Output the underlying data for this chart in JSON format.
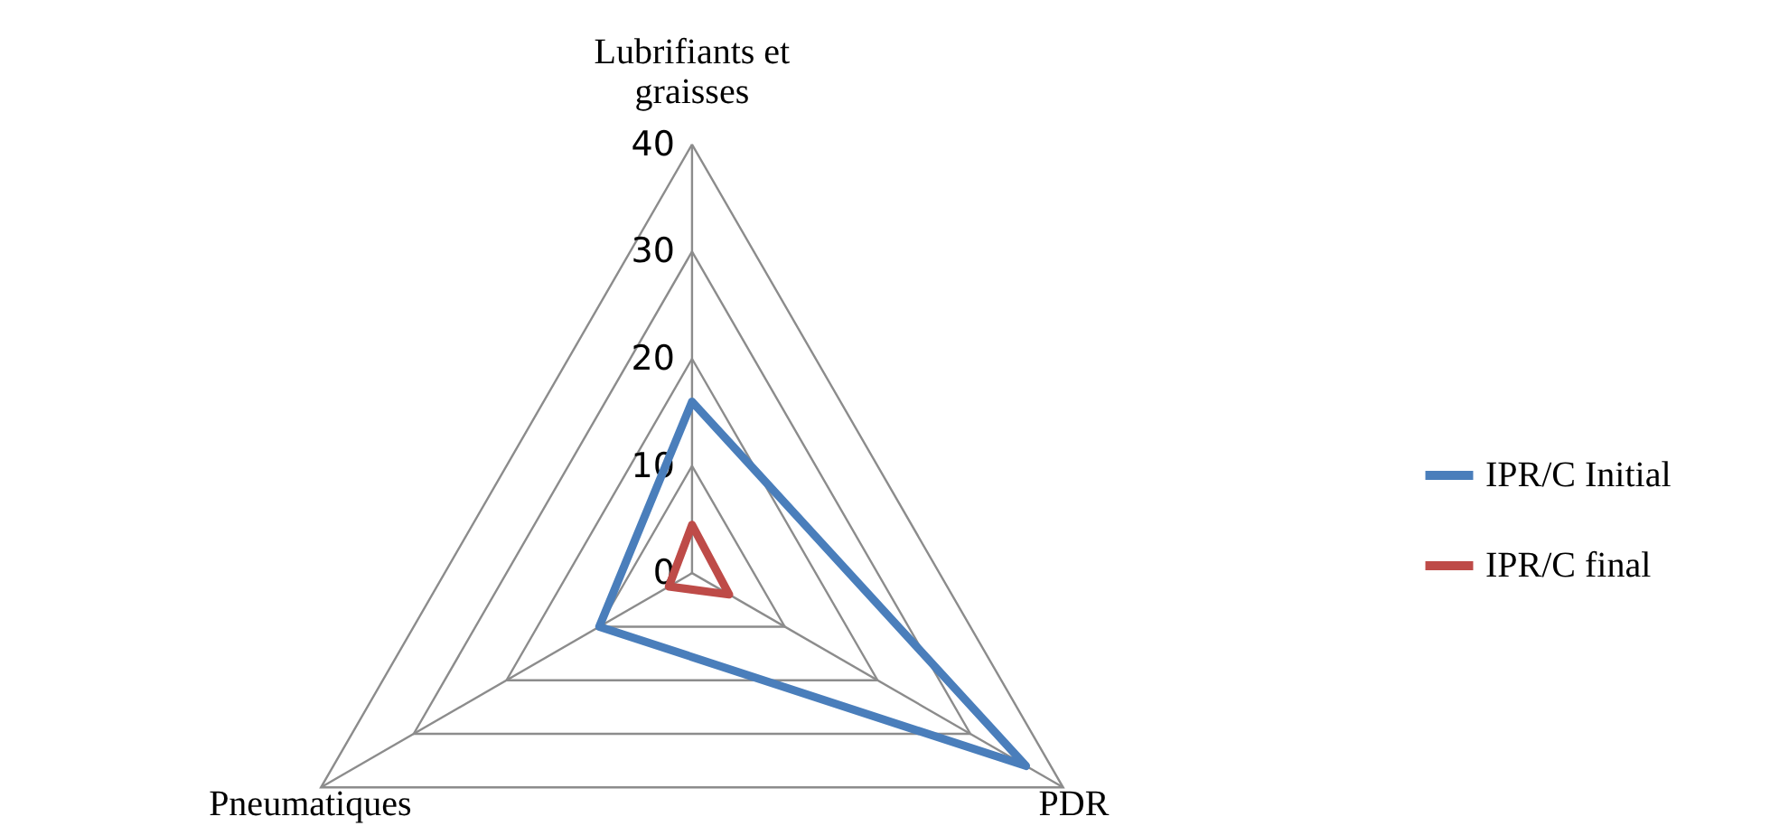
{
  "chart_data": {
    "type": "radar",
    "categories": [
      "Lubrifiants et graisses",
      "PDR",
      "Pneumatiques"
    ],
    "series": [
      {
        "name": "IPR/C Initial",
        "color": "#4a7ebb",
        "values": [
          16,
          36,
          10
        ]
      },
      {
        "name": "IPR/C final",
        "color": "#be4b48",
        "values": [
          4.5,
          4,
          2.5
        ]
      }
    ],
    "ylim": [
      0,
      40
    ],
    "yticks": [
      0,
      10,
      20,
      30,
      40
    ],
    "grid": true,
    "legend": "right"
  }
}
